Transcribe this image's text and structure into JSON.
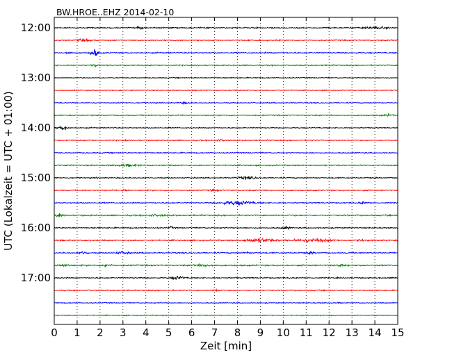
{
  "chart_data": {
    "type": "line",
    "title": "BW.HROE..EHZ 2014-02-10",
    "xlabel": "Zeit  [min]",
    "ylabel": "UTC (Lokalzeit = UTC + 01:00)",
    "xlim": [
      0,
      15
    ],
    "x_ticks": [
      "0",
      "1",
      "2",
      "3",
      "4",
      "5",
      "6",
      "7",
      "8",
      "9",
      "10",
      "11",
      "12",
      "13",
      "14",
      "15"
    ],
    "y_tick_labels": [
      "12:00",
      "13:00",
      "14:00",
      "15:00",
      "16:00",
      "17:00"
    ],
    "grid": "vertical dotted lines at each minute",
    "trace_colors": [
      "#000000",
      "#ff0000",
      "#0000ff",
      "#008000"
    ],
    "traces": [
      {
        "start": "12:00",
        "amplitude": 1.0,
        "events": [
          {
            "t": 14.0,
            "w": 1.2,
            "a": 2.2
          },
          {
            "t": 3.8,
            "w": 0.6,
            "a": 1.3
          }
        ]
      },
      {
        "start": "12:15",
        "amplitude": 1.0,
        "events": [
          {
            "t": 1.3,
            "w": 0.8,
            "a": 1.4
          }
        ]
      },
      {
        "start": "12:30",
        "amplitude": 1.0,
        "events": [
          {
            "t": 1.75,
            "w": 0.35,
            "a": 7.0
          },
          {
            "t": 0.6,
            "w": 0.4,
            "a": 1.5
          }
        ]
      },
      {
        "start": "12:45",
        "amplitude": 0.9,
        "events": [
          {
            "t": 1.8,
            "w": 0.3,
            "a": 1.5
          }
        ]
      },
      {
        "start": "13:00",
        "amplitude": 0.8,
        "events": []
      },
      {
        "start": "13:15",
        "amplitude": 0.8,
        "events": []
      },
      {
        "start": "13:30",
        "amplitude": 0.9,
        "events": [
          {
            "t": 5.7,
            "w": 0.5,
            "a": 1.5
          }
        ]
      },
      {
        "start": "13:45",
        "amplitude": 0.9,
        "events": [
          {
            "t": 14.6,
            "w": 0.5,
            "a": 1.5
          }
        ]
      },
      {
        "start": "14:00",
        "amplitude": 0.9,
        "events": [
          {
            "t": 0.4,
            "w": 0.5,
            "a": 3.5
          }
        ]
      },
      {
        "start": "14:15",
        "amplitude": 0.9,
        "events": [
          {
            "t": 7.3,
            "w": 0.5,
            "a": 1.3
          }
        ]
      },
      {
        "start": "14:30",
        "amplitude": 0.9,
        "events": []
      },
      {
        "start": "14:45",
        "amplitude": 1.0,
        "events": [
          {
            "t": 3.2,
            "w": 1.2,
            "a": 1.5
          }
        ]
      },
      {
        "start": "15:00",
        "amplitude": 1.0,
        "events": [
          {
            "t": 8.4,
            "w": 1.0,
            "a": 2.2
          }
        ]
      },
      {
        "start": "15:15",
        "amplitude": 1.0,
        "events": [
          {
            "t": 3.1,
            "w": 0.3,
            "a": 2.0
          },
          {
            "t": 7.0,
            "w": 0.4,
            "a": 1.4
          }
        ]
      },
      {
        "start": "15:30",
        "amplitude": 1.0,
        "events": [
          {
            "t": 8.0,
            "w": 1.6,
            "a": 3.5
          },
          {
            "t": 13.5,
            "w": 0.4,
            "a": 2.2
          }
        ]
      },
      {
        "start": "15:45",
        "amplitude": 1.1,
        "events": [
          {
            "t": 0.2,
            "w": 0.5,
            "a": 1.8
          },
          {
            "t": 4.5,
            "w": 1.0,
            "a": 1.3
          }
        ]
      },
      {
        "start": "16:00",
        "amplitude": 1.0,
        "events": [
          {
            "t": 10.1,
            "w": 0.4,
            "a": 2.0
          },
          {
            "t": 5.1,
            "w": 0.3,
            "a": 1.4
          }
        ]
      },
      {
        "start": "16:15",
        "amplitude": 1.1,
        "events": [
          {
            "t": 9.0,
            "w": 1.6,
            "a": 3.0
          },
          {
            "t": 11.3,
            "w": 2.0,
            "a": 2.5
          },
          {
            "t": 13.4,
            "w": 0.4,
            "a": 1.3
          }
        ]
      },
      {
        "start": "16:30",
        "amplitude": 1.1,
        "events": [
          {
            "t": 1.3,
            "w": 0.5,
            "a": 2.0
          },
          {
            "t": 3.0,
            "w": 0.7,
            "a": 2.0
          },
          {
            "t": 8.4,
            "w": 0.3,
            "a": 1.5
          },
          {
            "t": 11.2,
            "w": 0.4,
            "a": 1.5
          }
        ]
      },
      {
        "start": "16:45",
        "amplitude": 1.2,
        "events": [
          {
            "t": 0.4,
            "w": 0.6,
            "a": 2.0
          },
          {
            "t": 2.3,
            "w": 0.4,
            "a": 2.5
          },
          {
            "t": 6.6,
            "w": 0.8,
            "a": 2.0
          },
          {
            "t": 12.6,
            "w": 0.5,
            "a": 2.2
          }
        ]
      },
      {
        "start": "17:00",
        "amplitude": 1.0,
        "events": [
          {
            "t": 5.4,
            "w": 0.6,
            "a": 3.0
          }
        ]
      },
      {
        "start": "17:15",
        "amplitude": 0.9,
        "events": [
          {
            "t": 7.1,
            "w": 0.4,
            "a": 1.6
          }
        ]
      },
      {
        "start": "17:30",
        "amplitude": 0.8,
        "events": []
      },
      {
        "start": "17:45",
        "amplitude": 0.8,
        "events": []
      }
    ]
  }
}
